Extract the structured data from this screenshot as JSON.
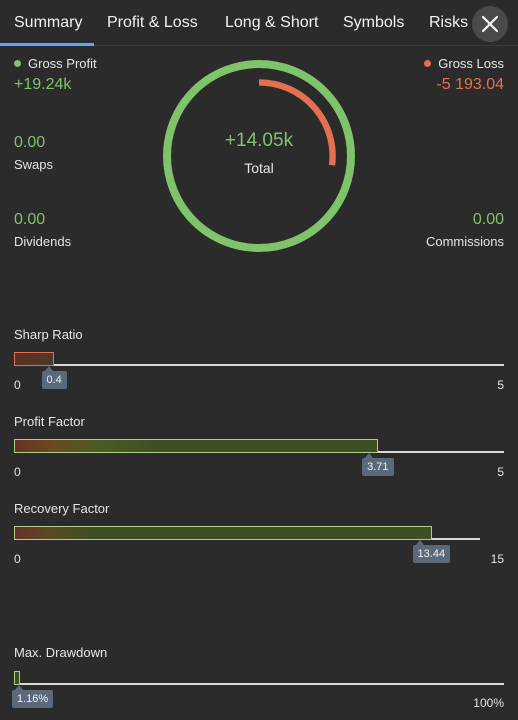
{
  "tabs": [
    "Summary",
    "Profit & Loss",
    "Long & Short",
    "Symbols",
    "Risks"
  ],
  "active_tab": "Summary",
  "colors": {
    "profit": "#7fc46a",
    "loss": "#e5704f",
    "accent": "#5fa3ff",
    "tag": "#5b6a7a"
  },
  "summary": {
    "gross_profit": {
      "label": "Gross Profit",
      "value": "+19.24k"
    },
    "gross_loss": {
      "label": "Gross Loss",
      "value": "-5 193.04"
    },
    "total": {
      "label": "Total",
      "value": "+14.05k"
    },
    "swaps": {
      "label": "Swaps",
      "value": "0.00"
    },
    "dividends": {
      "label": "Dividends",
      "value": "0.00"
    },
    "commissions": {
      "label": "Commissions",
      "value": "0.00"
    },
    "ring": {
      "loss_fraction": 0.27
    }
  },
  "metrics": {
    "sharp_ratio": {
      "label": "Sharp Ratio",
      "value": "0.4",
      "min": "0",
      "max": "5",
      "fraction": 0.08
    },
    "profit_factor": {
      "label": "Profit Factor",
      "value": "3.71",
      "min": "0",
      "max": "5",
      "fraction": 0.742
    },
    "recovery_factor": {
      "label": "Recovery Factor",
      "value": "13.44",
      "min": "0",
      "max": "15",
      "fraction": 0.896
    },
    "max_drawdown": {
      "label": "Max. Drawdown",
      "value": "1.16%",
      "max": "100%",
      "fraction": 0.0116
    }
  }
}
